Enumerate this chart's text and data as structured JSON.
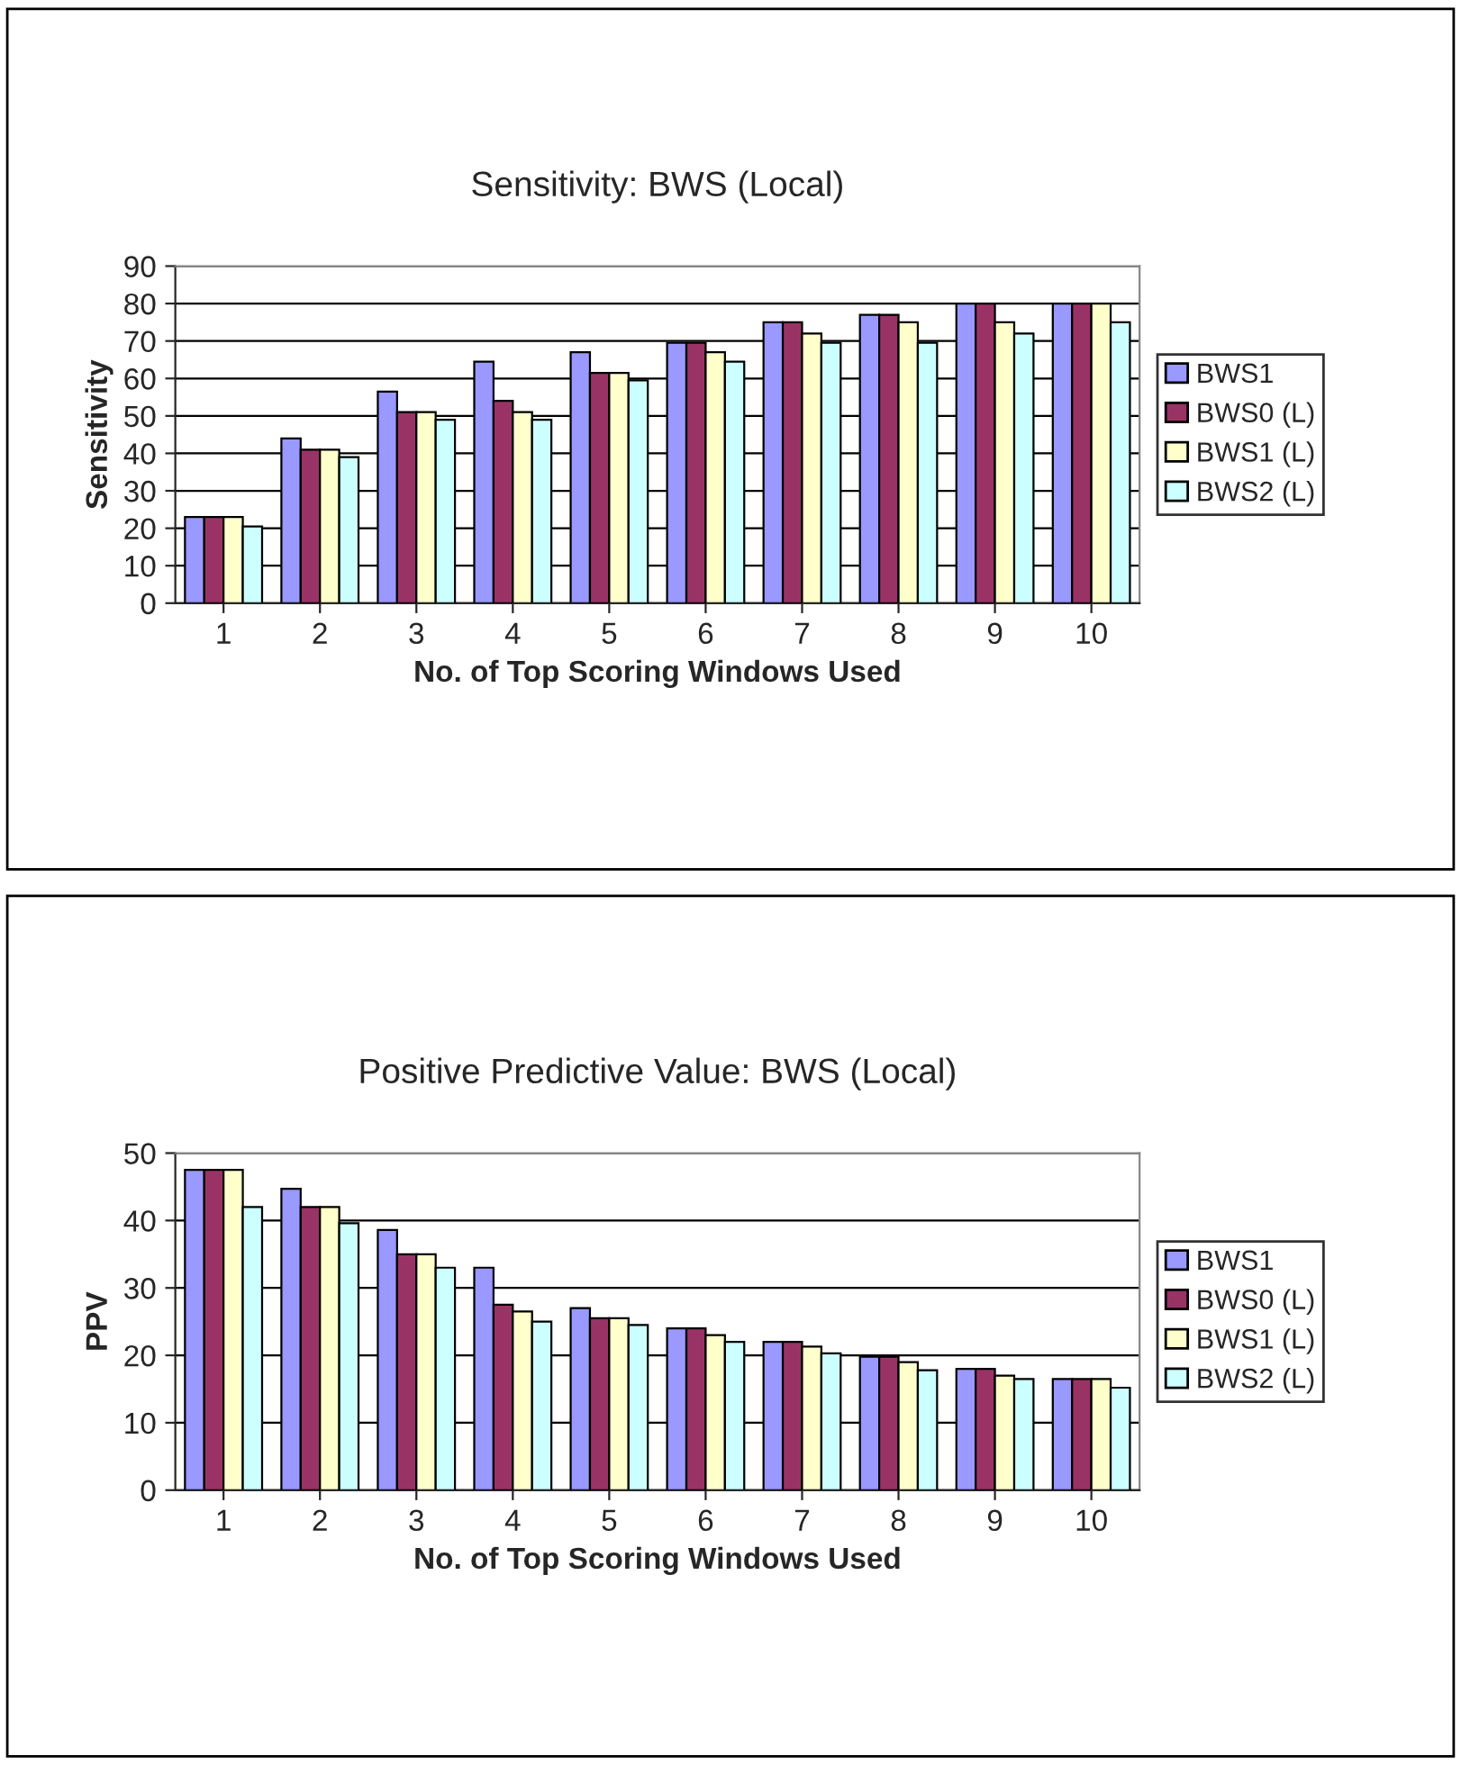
{
  "chart_data": [
    {
      "type": "bar",
      "title": "Sensitivity: BWS (Local)",
      "xlabel": "No. of Top Scoring Windows Used",
      "ylabel": "Sensitivity",
      "categories": [
        "1",
        "2",
        "3",
        "4",
        "5",
        "6",
        "7",
        "8",
        "9",
        "10"
      ],
      "ylim": [
        0,
        90
      ],
      "yticks": [
        0,
        10,
        20,
        30,
        40,
        50,
        60,
        70,
        80,
        90
      ],
      "grid": "y",
      "legend": "right",
      "series": [
        {
          "name": "BWS1",
          "color": "#9999ff",
          "values": [
            23,
            44,
            56.5,
            64.5,
            67,
            69.5,
            75,
            77,
            80,
            80
          ]
        },
        {
          "name": "BWS0 (L)",
          "color": "#993366",
          "values": [
            23,
            41,
            51,
            54,
            61.5,
            69.5,
            75,
            77,
            80,
            80
          ]
        },
        {
          "name": "BWS1 (L)",
          "color": "#ffffcc",
          "values": [
            23,
            41,
            51,
            51,
            61.5,
            67,
            72,
            75,
            75,
            80
          ]
        },
        {
          "name": "BWS2 (L)",
          "color": "#ccffff",
          "values": [
            20.5,
            39,
            49,
            49,
            59.5,
            64.5,
            69.5,
            69.5,
            72,
            75
          ]
        }
      ]
    },
    {
      "type": "bar",
      "title": "Positive Predictive Value: BWS (Local)",
      "xlabel": "No. of Top Scoring Windows Used",
      "ylabel": "PPV",
      "categories": [
        "1",
        "2",
        "3",
        "4",
        "5",
        "6",
        "7",
        "8",
        "9",
        "10"
      ],
      "ylim": [
        0,
        50
      ],
      "yticks": [
        0,
        10,
        20,
        30,
        40,
        50
      ],
      "grid": "y",
      "legend": "right",
      "series": [
        {
          "name": "BWS1",
          "color": "#9999ff",
          "values": [
            47.5,
            44.7,
            38.6,
            33,
            27,
            24,
            22,
            19.8,
            18,
            16.5
          ]
        },
        {
          "name": "BWS0 (L)",
          "color": "#993366",
          "values": [
            47.5,
            42,
            35,
            27.5,
            25.5,
            24,
            22,
            19.8,
            18,
            16.5
          ]
        },
        {
          "name": "BWS1 (L)",
          "color": "#ffffcc",
          "values": [
            47.5,
            42,
            35,
            26.5,
            25.5,
            23,
            21.3,
            19,
            17,
            16.5
          ]
        },
        {
          "name": "BWS2 (L)",
          "color": "#ccffff",
          "values": [
            42,
            39.6,
            33,
            25,
            24.5,
            22,
            20.3,
            17.8,
            16.5,
            15.2
          ]
        }
      ]
    }
  ]
}
